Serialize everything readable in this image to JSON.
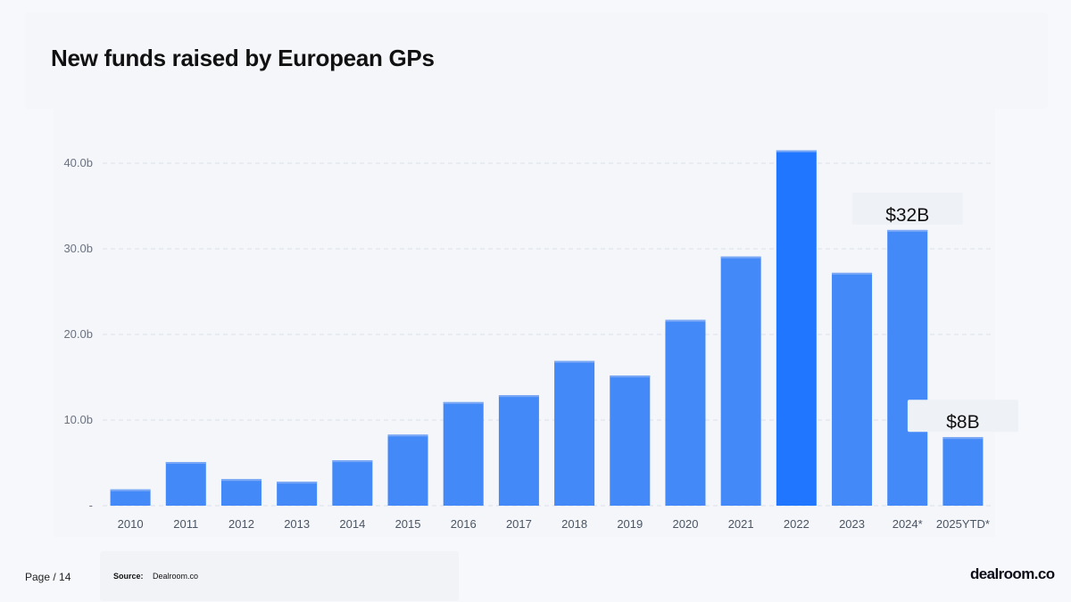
{
  "page": {
    "title": "New funds raised by European GPs",
    "page_label": "Page / 14",
    "source_label": "Source:",
    "source_value": "Dealroom.co",
    "logo_text": "dealroom.co"
  },
  "chart_data": {
    "type": "bar",
    "title": "New funds raised by European GPs",
    "xlabel": "",
    "ylabel": "",
    "categories": [
      "2010",
      "2011",
      "2012",
      "2013",
      "2014",
      "2015",
      "2016",
      "2017",
      "2018",
      "2019",
      "2020",
      "2021",
      "2022",
      "2023",
      "2024*",
      "2025YTD*"
    ],
    "values": [
      1.9,
      5.1,
      3.1,
      2.8,
      5.3,
      8.3,
      12.1,
      12.9,
      16.9,
      15.2,
      21.7,
      29.1,
      41.5,
      27.2,
      32.2,
      8.0
    ],
    "ylim": [
      0,
      45
    ],
    "yticks": [
      0,
      10,
      20,
      30,
      40
    ],
    "ytick_labels": [
      "-",
      "10.0b",
      "20.0b",
      "30.0b",
      "40.0b"
    ],
    "grid": true,
    "colors": {
      "bar": "#4489f8",
      "highlight": "#2176ff"
    },
    "highlight_index": 12,
    "annotations": [
      {
        "category_index": 14,
        "text": "$32B"
      },
      {
        "category_index": 15,
        "text": "$8B"
      }
    ]
  }
}
